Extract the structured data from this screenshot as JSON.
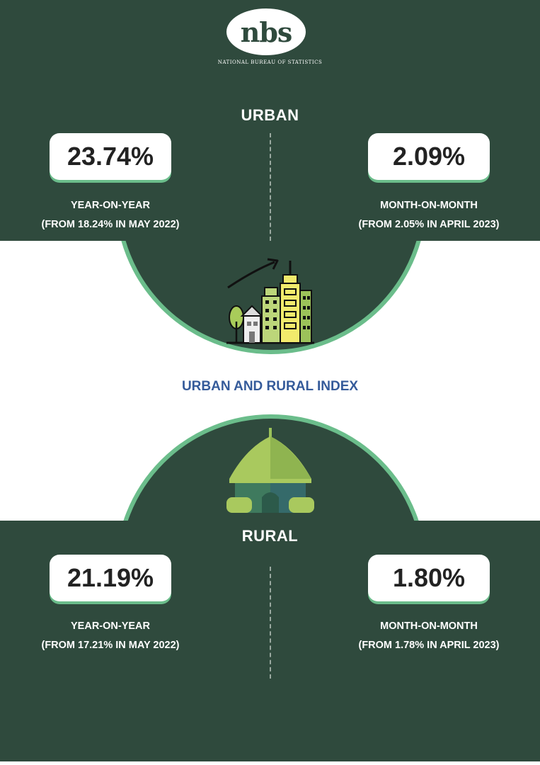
{
  "logo": {
    "text": "nbs",
    "subtitle": "NATIONAL BUREAU OF STATISTICS"
  },
  "urban": {
    "title": "URBAN",
    "year_on_year": {
      "value": "23.74%",
      "label": "YEAR-ON-YEAR",
      "note": "(FROM 18.24% IN MAY 2022)"
    },
    "month_on_month": {
      "value": "2.09%",
      "label": "MONTH-ON-MONTH",
      "note": "(FROM 2.05% IN APRIL 2023)"
    }
  },
  "index_title": "URBAN AND RURAL INDEX",
  "rural": {
    "title": "RURAL",
    "year_on_year": {
      "value": "21.19%",
      "label": "YEAR-ON-YEAR",
      "note": "(FROM 17.21% IN MAY 2022)"
    },
    "month_on_month": {
      "value": "1.80%",
      "label": "MONTH-ON-MONTH",
      "note": "(FROM 1.78% IN APRIL 2023)"
    }
  },
  "icons": [
    "city-growth-icon",
    "hut-icon"
  ],
  "colors": {
    "panel": "#2f4a3d",
    "accent": "#6bbd8b",
    "index_title": "#355b9a",
    "value_text": "#222222"
  }
}
